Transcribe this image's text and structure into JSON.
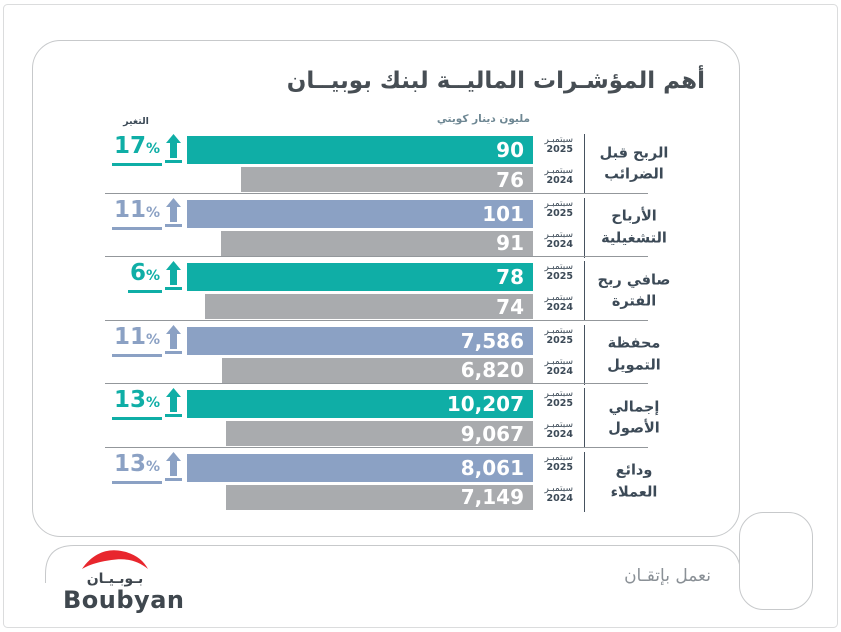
{
  "header": {
    "title": "أهم المؤشـرات الماليــة لبنك بوبيــان",
    "unit_label": "مليون دينار كويتي",
    "change_label": "التغير"
  },
  "period": {
    "month": "سبتمبـر",
    "year_current": "2025",
    "year_previous": "2024"
  },
  "rows": [
    {
      "label_line1": "الربح قبل",
      "label_line2": "الضرائب",
      "change": "17",
      "percent_sign": "%",
      "value_current": "90",
      "value_previous": "76",
      "num_current": 90,
      "num_previous": 76,
      "accent": "teal"
    },
    {
      "label_line1": "الأرباح",
      "label_line2": "التشغيلية",
      "change": "11",
      "percent_sign": "%",
      "value_current": "101",
      "value_previous": "91",
      "num_current": 101,
      "num_previous": 91,
      "accent": "blue"
    },
    {
      "label_line1": "صافي ربح",
      "label_line2": "الفترة",
      "change": "6",
      "percent_sign": "%",
      "value_current": "78",
      "value_previous": "74",
      "num_current": 78,
      "num_previous": 74,
      "accent": "teal"
    },
    {
      "label_line1": "محفظة",
      "label_line2": "التمويل",
      "change": "11",
      "percent_sign": "%",
      "value_current": "7,586",
      "value_previous": "6,820",
      "num_current": 7586,
      "num_previous": 6820,
      "accent": "blue"
    },
    {
      "label_line1": "إجمالي",
      "label_line2": "الأصول",
      "change": "13",
      "percent_sign": "%",
      "value_current": "10,207",
      "value_previous": "9,067",
      "num_current": 10207,
      "num_previous": 9067,
      "accent": "teal"
    },
    {
      "label_line1": "ودائع",
      "label_line2": "العملاء",
      "change": "13",
      "percent_sign": "%",
      "value_current": "8,061",
      "value_previous": "7,149",
      "num_current": 8061,
      "num_previous": 7149,
      "accent": "blue"
    }
  ],
  "footer": {
    "logo_arabic": "بـوبـيـان",
    "logo_latin": "Boubyan",
    "tagline": "نعمل بإتقـان"
  },
  "colors": {
    "teal": "#0FAEA6",
    "blue": "#8BA1C4",
    "gray_bar": "#A9ABAE",
    "text_dark": "#3C4A57",
    "title": "#474E54",
    "logo_red": "#E8262D",
    "border": "#C7C9CB"
  },
  "chart_data": {
    "type": "bar",
    "orientation": "horizontal",
    "title": "أهم المؤشرات المالية لبنك بوبيان",
    "unit": "مليون دينار كويتي",
    "categories": [
      "الربح قبل الضرائب",
      "الأرباح التشغيلية",
      "صافي ربح الفترة",
      "محفظة التمويل",
      "إجمالي الأصول",
      "ودائع العملاء"
    ],
    "series": [
      {
        "name": "سبتمبر 2025",
        "values": [
          90,
          101,
          78,
          7586,
          10207,
          8061
        ]
      },
      {
        "name": "سبتمبر 2024",
        "values": [
          76,
          91,
          74,
          6820,
          9067,
          7149
        ]
      }
    ],
    "change_percent": [
      17,
      11,
      6,
      11,
      13,
      13
    ],
    "change_direction": "up",
    "grid": false,
    "legend_position": "per-bar-right",
    "value_labels": "inside-bar-right"
  }
}
